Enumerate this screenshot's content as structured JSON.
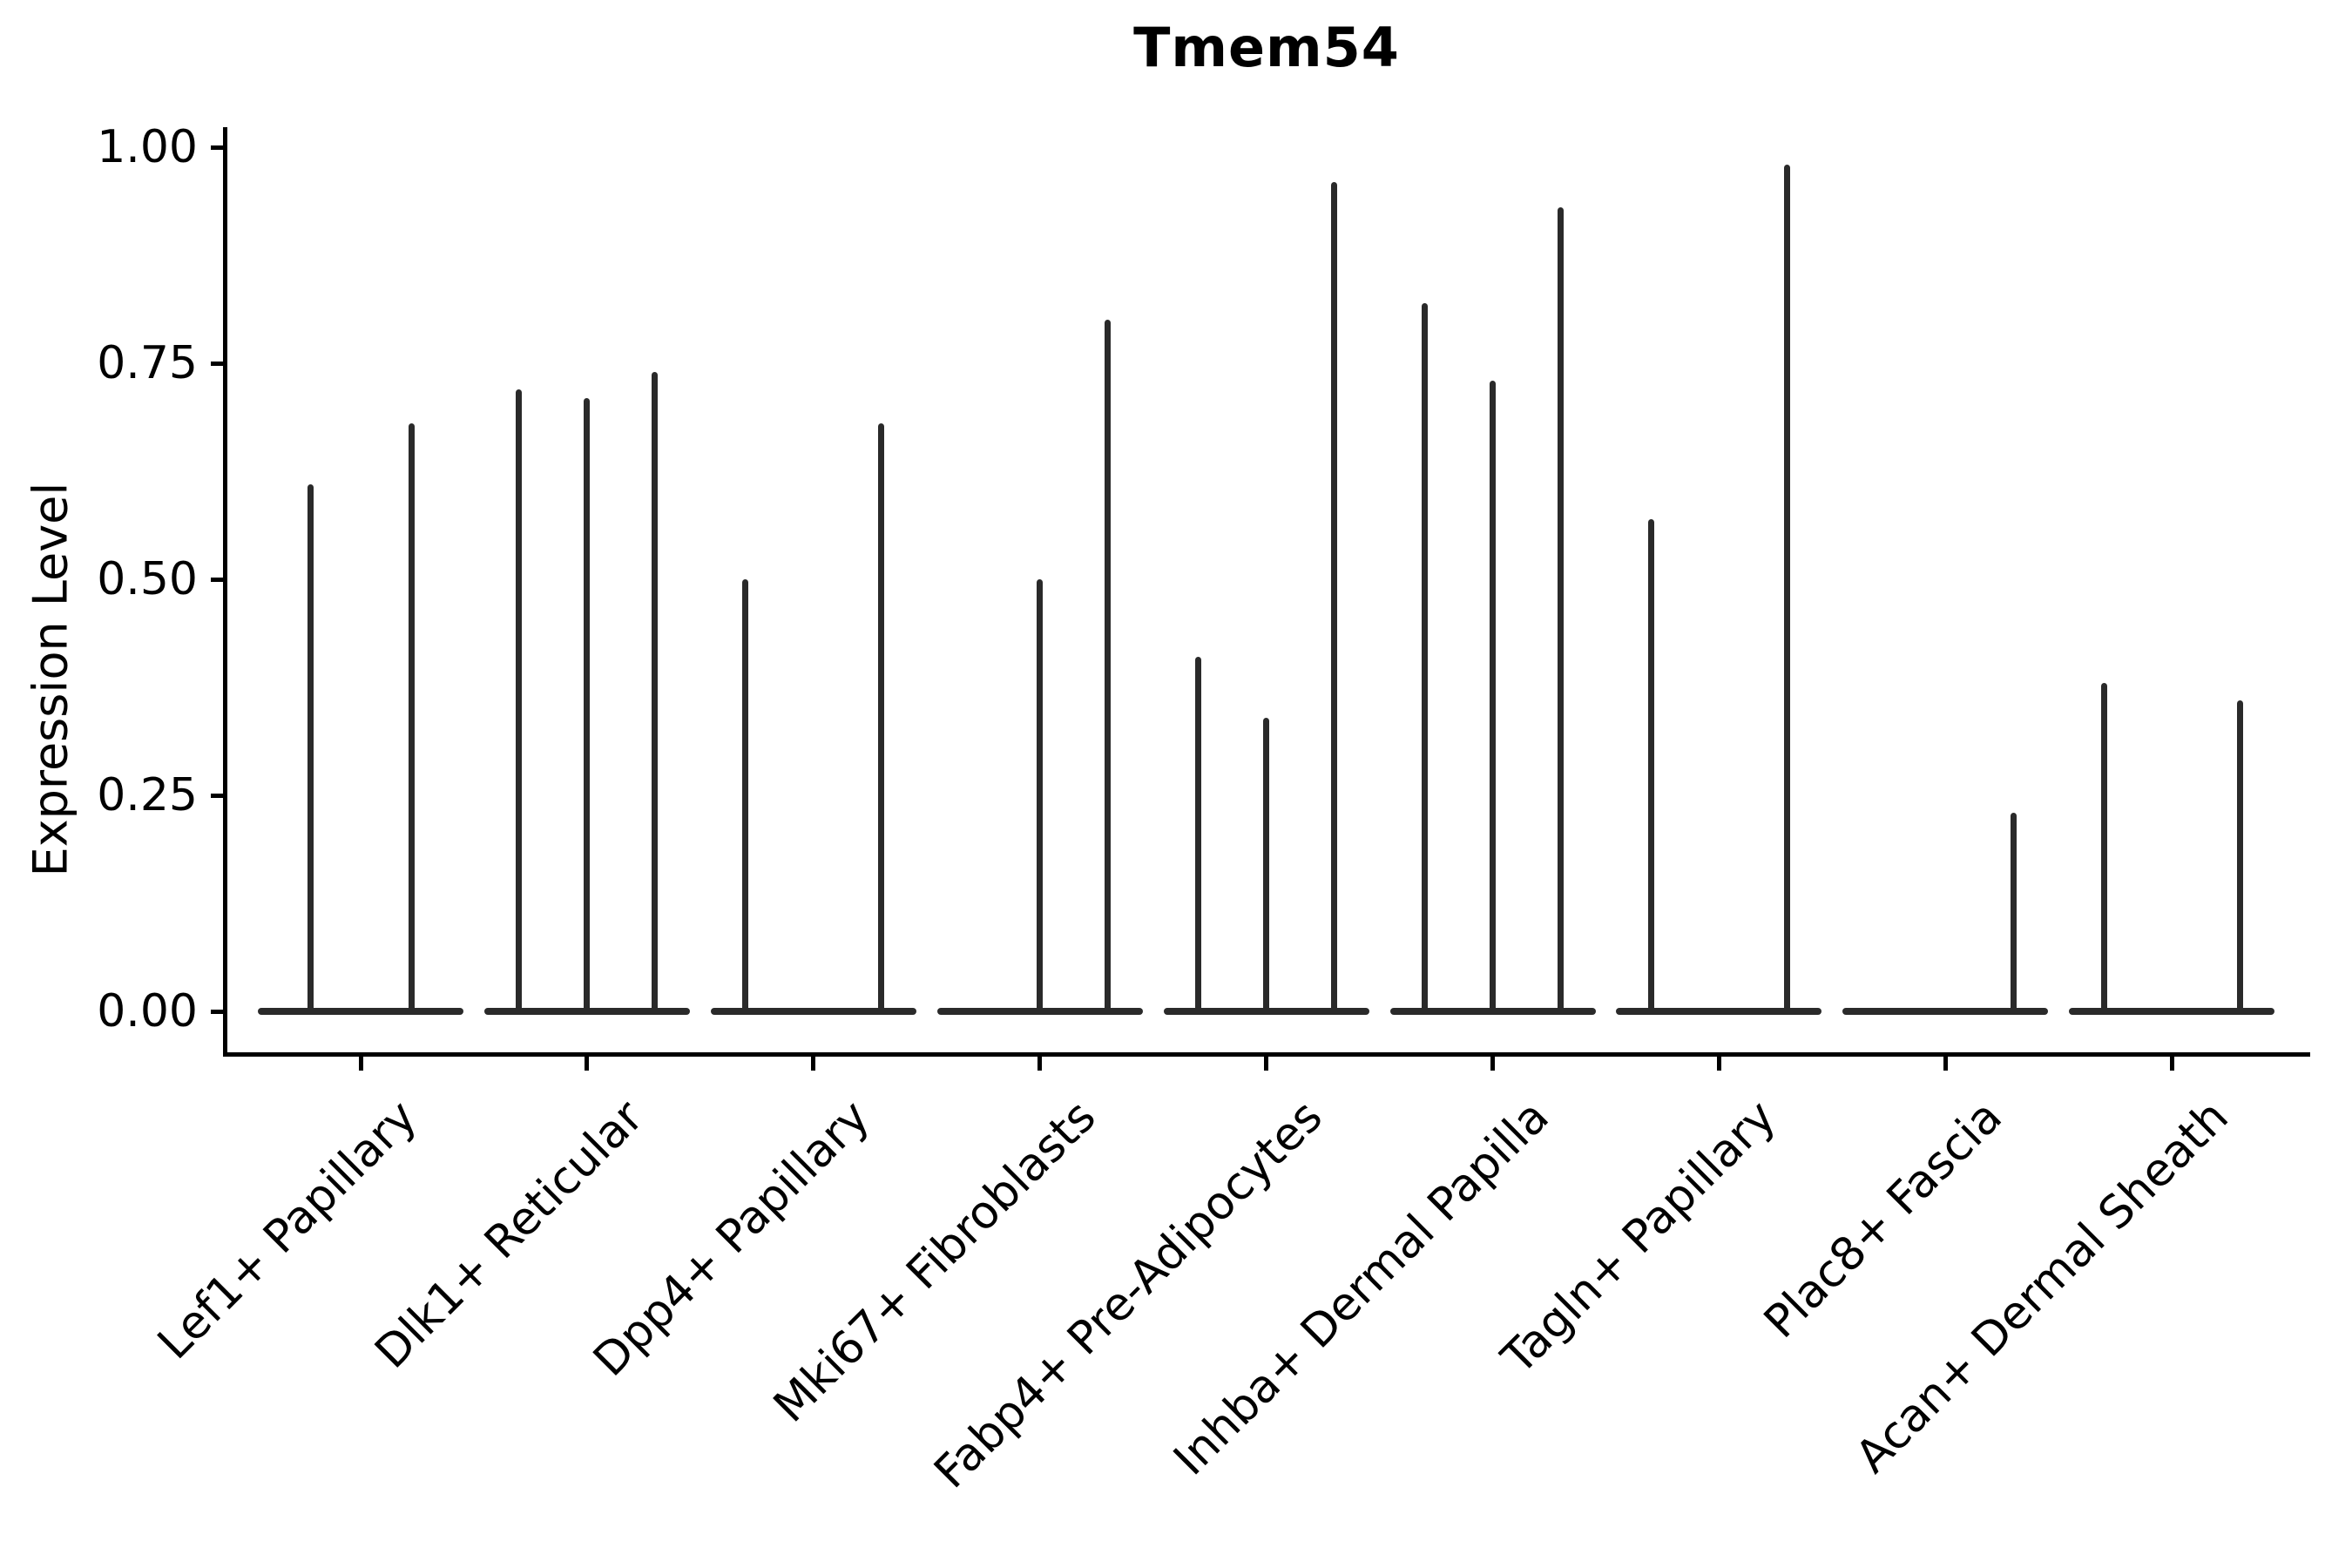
{
  "chart_data": {
    "type": "violin",
    "title": "Tmem54",
    "ylabel": "Expression Level",
    "xlabel": "",
    "grid": false,
    "legend": null,
    "ylim": [
      0.0,
      1.0
    ],
    "ink_color": "#2a2a2a",
    "axis_color": "#000000",
    "background_color": "#ffffff",
    "yticks": [
      {
        "value": 0.0,
        "label": "0.00"
      },
      {
        "value": 0.25,
        "label": "0.25"
      },
      {
        "value": 0.5,
        "label": "0.50"
      },
      {
        "value": 0.75,
        "label": "0.75"
      },
      {
        "value": 1.0,
        "label": "1.00"
      }
    ],
    "categories": [
      "Lef1+ Papillary",
      "Dlk1+ Reticular",
      "Dpp4+ Papillary",
      "Mki67+ Fibroblasts",
      "Fabp4+ Pre-Adipocytes",
      "Inhba+ Dermal Papilla",
      "Tagln+ Papillary",
      "Plac8+ Fascia",
      "Acan+ Dermal Sheath"
    ],
    "groups": [
      {
        "category": "Lef1+ Papillary",
        "violins": [
          {
            "offset": -58,
            "max": 0.61
          },
          {
            "offset": 58,
            "max": 0.68
          }
        ]
      },
      {
        "category": "Dlk1+ Reticular",
        "violins": [
          {
            "offset": -78,
            "max": 0.72
          },
          {
            "offset": 0,
            "max": 0.71
          },
          {
            "offset": 78,
            "max": 0.74
          }
        ]
      },
      {
        "category": "Dpp4+ Papillary",
        "violins": [
          {
            "offset": -78,
            "max": 0.5
          },
          {
            "offset": 78,
            "max": 0.68
          }
        ]
      },
      {
        "category": "Mki67+ Fibroblasts",
        "violins": [
          {
            "offset": 0,
            "max": 0.5
          },
          {
            "offset": 78,
            "max": 0.8
          }
        ]
      },
      {
        "category": "Fabp4+ Pre-Adipocytes",
        "violins": [
          {
            "offset": -78,
            "max": 0.41
          },
          {
            "offset": 0,
            "max": 0.34
          },
          {
            "offset": 78,
            "max": 0.96
          }
        ]
      },
      {
        "category": "Inhba+ Dermal Papilla",
        "violins": [
          {
            "offset": -78,
            "max": 0.82
          },
          {
            "offset": 0,
            "max": 0.73
          },
          {
            "offset": 78,
            "max": 0.93
          }
        ]
      },
      {
        "category": "Tagln+ Papillary",
        "violins": [
          {
            "offset": -78,
            "max": 0.57
          },
          {
            "offset": 78,
            "max": 0.98
          }
        ]
      },
      {
        "category": "Plac8+ Fascia",
        "violins": [
          {
            "offset": 78,
            "max": 0.23
          }
        ]
      },
      {
        "category": "Acan+ Dermal Sheath",
        "violins": [
          {
            "offset": -78,
            "max": 0.38
          },
          {
            "offset": 78,
            "max": 0.36
          }
        ]
      }
    ]
  }
}
